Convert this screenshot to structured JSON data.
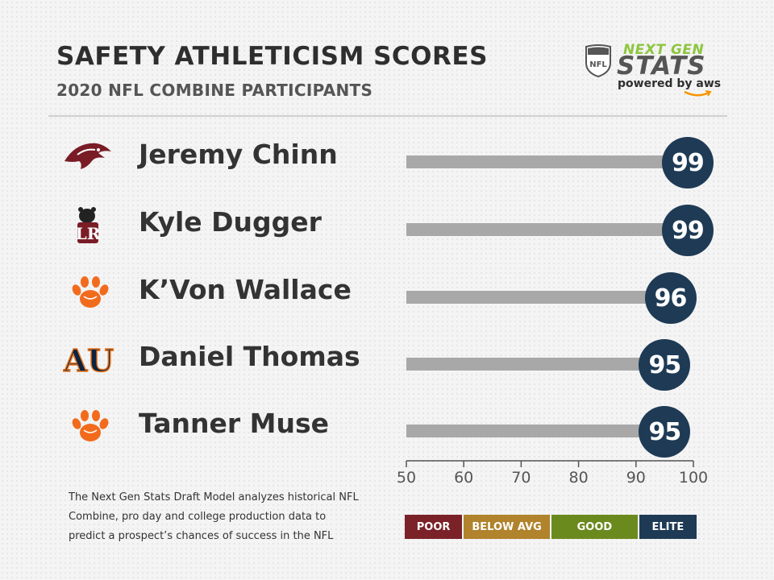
{
  "header": {
    "title": "SAFETY ATHLETICISM SCORES",
    "subtitle": "2020 NFL COMBINE PARTICIPANTS"
  },
  "brand": {
    "line1": "NEXT GEN",
    "line2": "STATS",
    "powered": "powered by aws",
    "shield_text": "NFL"
  },
  "chart_data": {
    "type": "bar",
    "orientation": "horizontal",
    "categories": [
      "Jeremy Chinn",
      "Kyle Dugger",
      "K’Von Wallace",
      "Daniel Thomas",
      "Tanner Muse"
    ],
    "values": [
      99,
      99,
      96,
      95,
      95
    ],
    "xlim": [
      50,
      100
    ],
    "xticks": [
      50,
      60,
      70,
      80,
      90,
      100
    ],
    "logos": [
      "redhawk-logo",
      "lenoir-rhyne-bear-logo",
      "tiger-paw-logo",
      "au-logo",
      "tiger-paw-logo"
    ],
    "bar_color": "#a8a8a8",
    "badge_color": "#1e3a55"
  },
  "footnote": "The Next Gen Stats Draft Model analyzes historical NFL Combine, pro day and college production data to predict a prospect’s chances of success in the NFL",
  "legend": [
    {
      "label": "POOR",
      "color": "#7a2228",
      "from": 50,
      "to": 60
    },
    {
      "label": "BELOW AVG",
      "color": "#b0832c",
      "from": 60,
      "to": 75
    },
    {
      "label": "GOOD",
      "color": "#6b8a1e",
      "from": 75,
      "to": 90
    },
    {
      "label": "ELITE",
      "color": "#1e3a55",
      "from": 90,
      "to": 100
    }
  ]
}
